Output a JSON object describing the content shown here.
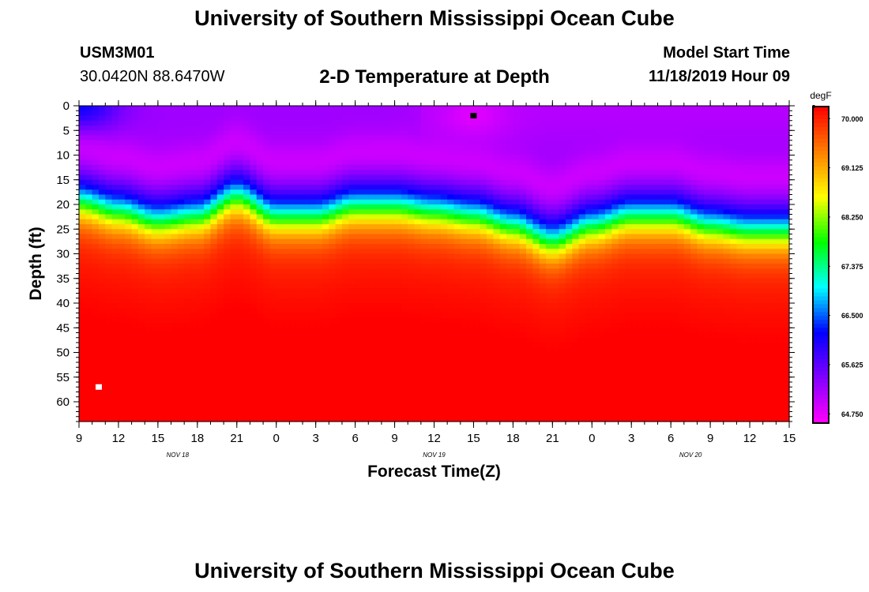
{
  "header": {
    "title": "University of Southern Mississippi Ocean Cube",
    "station_id": "USM3M01",
    "coordinates": "30.0420N 88.6470W",
    "model_start_label": "Model Start Time",
    "model_start_value": "11/18/2019 Hour 09"
  },
  "footer": {
    "title": "University of Southern Mississippi Ocean Cube"
  },
  "chart_data": {
    "type": "heatmap",
    "title": "2-D Temperature at Depth",
    "xlabel": "Forecast Time(Z)",
    "ylabel": "Depth (ft)",
    "x_hours_range": [
      0,
      54
    ],
    "x_tick_labels": [
      "9",
      "12",
      "15",
      "18",
      "21",
      "0",
      "3",
      "6",
      "9",
      "12",
      "15",
      "18",
      "21",
      "0",
      "3",
      "6",
      "9",
      "12",
      "15"
    ],
    "date_labels": [
      {
        "label": "NOV 18",
        "hour": 7.5
      },
      {
        "label": "NOV 19",
        "hour": 27
      },
      {
        "label": "NOV 20",
        "hour": 46.5
      }
    ],
    "y_range_ft": [
      0,
      64
    ],
    "y_ticks": [
      0,
      5,
      10,
      15,
      20,
      25,
      30,
      35,
      40,
      45,
      50,
      55,
      60
    ],
    "colorbar": {
      "unit": "degF",
      "min": 64.6,
      "max": 70.2,
      "tick_values": [
        64.75,
        65.625,
        66.5,
        67.375,
        68.25,
        69.125,
        70.0
      ],
      "tick_labels": [
        "64.750",
        "65.625",
        "66.500",
        "67.375",
        "68.250",
        "69.125",
        "70.000"
      ],
      "colors": [
        "#ff00ff",
        "#8000ff",
        "#0000ff",
        "#00ffff",
        "#00ff00",
        "#ffff00",
        "#ff8000",
        "#ff0000"
      ]
    },
    "temp_range_degF": [
      64.7,
      70.2
    ],
    "thermocline": {
      "hours": [
        0,
        3,
        6,
        9,
        12,
        15,
        18,
        21,
        24,
        27,
        30,
        33,
        36,
        39,
        42,
        45,
        48,
        51,
        54
      ],
      "depth_ft": [
        16,
        18,
        20,
        19,
        15,
        19,
        19,
        17,
        17,
        18,
        19,
        21,
        24,
        21,
        19,
        19,
        21,
        22,
        22
      ]
    },
    "surface_warm_spot": {
      "hour": 30,
      "depth_ft": 2,
      "temp_degF": 64.8
    },
    "markers": [
      {
        "name": "surface-marker",
        "hour": 30,
        "depth_ft": 2,
        "color": "#000000"
      },
      {
        "name": "bottom-marker",
        "hour": 1.5,
        "depth_ft": 57,
        "color": "#ffffff"
      }
    ]
  }
}
